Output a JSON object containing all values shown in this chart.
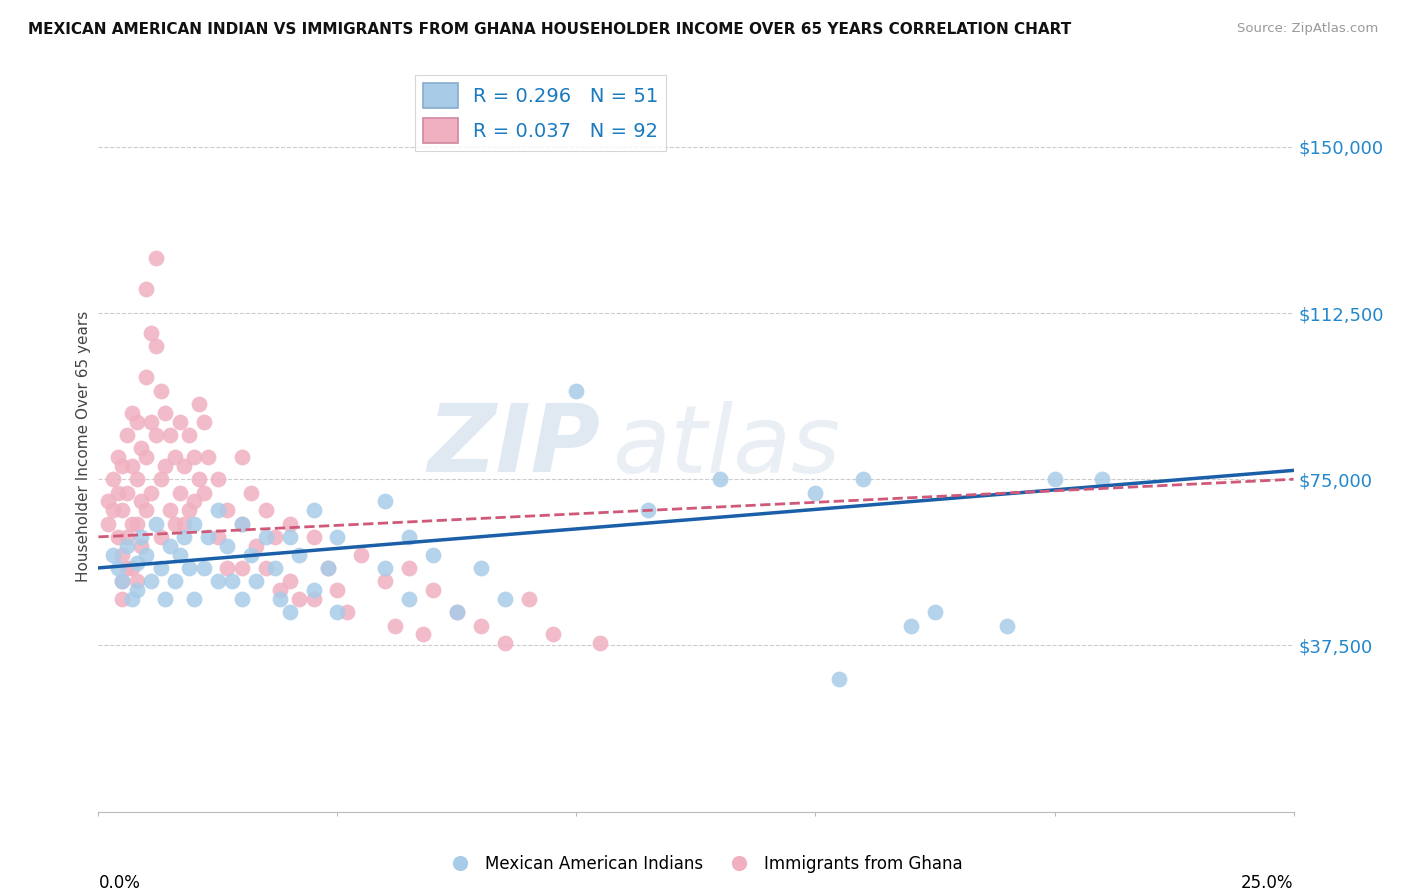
{
  "title": "MEXICAN AMERICAN INDIAN VS IMMIGRANTS FROM GHANA HOUSEHOLDER INCOME OVER 65 YEARS CORRELATION CHART",
  "source": "Source: ZipAtlas.com",
  "ylabel": "Householder Income Over 65 years",
  "xlim": [
    0.0,
    0.25
  ],
  "ylim": [
    0,
    165000
  ],
  "yticks": [
    0,
    37500,
    75000,
    112500,
    150000
  ],
  "ytick_labels": [
    "",
    "$37,500",
    "$75,000",
    "$112,500",
    "$150,000"
  ],
  "legend_label_blue": "Mexican American Indians",
  "legend_label_pink": "Immigrants from Ghana",
  "watermark_zip": "ZIP",
  "watermark_atlas": "atlas",
  "blue_color": "#a8cce8",
  "pink_color": "#f0b0c0",
  "blue_line_color": "#1a5fa8",
  "pink_line_color": "#d05878",
  "blue_scatter": [
    [
      0.003,
      58000
    ],
    [
      0.004,
      55000
    ],
    [
      0.005,
      52000
    ],
    [
      0.006,
      60000
    ],
    [
      0.007,
      48000
    ],
    [
      0.008,
      56000
    ],
    [
      0.008,
      50000
    ],
    [
      0.009,
      62000
    ],
    [
      0.01,
      58000
    ],
    [
      0.011,
      52000
    ],
    [
      0.012,
      65000
    ],
    [
      0.013,
      55000
    ],
    [
      0.014,
      48000
    ],
    [
      0.015,
      60000
    ],
    [
      0.016,
      52000
    ],
    [
      0.017,
      58000
    ],
    [
      0.018,
      62000
    ],
    [
      0.019,
      55000
    ],
    [
      0.02,
      48000
    ],
    [
      0.02,
      65000
    ],
    [
      0.022,
      55000
    ],
    [
      0.023,
      62000
    ],
    [
      0.025,
      68000
    ],
    [
      0.025,
      52000
    ],
    [
      0.027,
      60000
    ],
    [
      0.028,
      52000
    ],
    [
      0.03,
      65000
    ],
    [
      0.03,
      48000
    ],
    [
      0.032,
      58000
    ],
    [
      0.033,
      52000
    ],
    [
      0.035,
      62000
    ],
    [
      0.037,
      55000
    ],
    [
      0.038,
      48000
    ],
    [
      0.04,
      62000
    ],
    [
      0.04,
      45000
    ],
    [
      0.042,
      58000
    ],
    [
      0.045,
      68000
    ],
    [
      0.045,
      50000
    ],
    [
      0.048,
      55000
    ],
    [
      0.05,
      45000
    ],
    [
      0.05,
      62000
    ],
    [
      0.06,
      70000
    ],
    [
      0.06,
      55000
    ],
    [
      0.065,
      48000
    ],
    [
      0.065,
      62000
    ],
    [
      0.07,
      58000
    ],
    [
      0.075,
      45000
    ],
    [
      0.08,
      55000
    ],
    [
      0.085,
      48000
    ],
    [
      0.1,
      95000
    ],
    [
      0.115,
      68000
    ],
    [
      0.13,
      75000
    ],
    [
      0.15,
      72000
    ],
    [
      0.16,
      75000
    ],
    [
      0.175,
      45000
    ],
    [
      0.19,
      42000
    ],
    [
      0.2,
      75000
    ],
    [
      0.21,
      75000
    ],
    [
      0.155,
      30000
    ],
    [
      0.17,
      42000
    ]
  ],
  "pink_scatter": [
    [
      0.002,
      70000
    ],
    [
      0.002,
      65000
    ],
    [
      0.003,
      75000
    ],
    [
      0.003,
      68000
    ],
    [
      0.004,
      80000
    ],
    [
      0.004,
      72000
    ],
    [
      0.004,
      62000
    ],
    [
      0.005,
      78000
    ],
    [
      0.005,
      68000
    ],
    [
      0.005,
      58000
    ],
    [
      0.005,
      52000
    ],
    [
      0.005,
      48000
    ],
    [
      0.006,
      85000
    ],
    [
      0.006,
      72000
    ],
    [
      0.006,
      62000
    ],
    [
      0.006,
      55000
    ],
    [
      0.007,
      90000
    ],
    [
      0.007,
      78000
    ],
    [
      0.007,
      65000
    ],
    [
      0.007,
      55000
    ],
    [
      0.008,
      88000
    ],
    [
      0.008,
      75000
    ],
    [
      0.008,
      65000
    ],
    [
      0.008,
      52000
    ],
    [
      0.009,
      82000
    ],
    [
      0.009,
      70000
    ],
    [
      0.009,
      60000
    ],
    [
      0.01,
      118000
    ],
    [
      0.01,
      98000
    ],
    [
      0.01,
      80000
    ],
    [
      0.01,
      68000
    ],
    [
      0.011,
      108000
    ],
    [
      0.011,
      88000
    ],
    [
      0.011,
      72000
    ],
    [
      0.012,
      125000
    ],
    [
      0.012,
      105000
    ],
    [
      0.012,
      85000
    ],
    [
      0.013,
      95000
    ],
    [
      0.013,
      75000
    ],
    [
      0.013,
      62000
    ],
    [
      0.014,
      90000
    ],
    [
      0.014,
      78000
    ],
    [
      0.015,
      85000
    ],
    [
      0.015,
      68000
    ],
    [
      0.016,
      80000
    ],
    [
      0.016,
      65000
    ],
    [
      0.017,
      88000
    ],
    [
      0.017,
      72000
    ],
    [
      0.018,
      78000
    ],
    [
      0.018,
      65000
    ],
    [
      0.019,
      85000
    ],
    [
      0.019,
      68000
    ],
    [
      0.02,
      80000
    ],
    [
      0.02,
      70000
    ],
    [
      0.021,
      92000
    ],
    [
      0.021,
      75000
    ],
    [
      0.022,
      88000
    ],
    [
      0.022,
      72000
    ],
    [
      0.023,
      80000
    ],
    [
      0.025,
      75000
    ],
    [
      0.025,
      62000
    ],
    [
      0.027,
      68000
    ],
    [
      0.027,
      55000
    ],
    [
      0.03,
      80000
    ],
    [
      0.03,
      65000
    ],
    [
      0.03,
      55000
    ],
    [
      0.032,
      72000
    ],
    [
      0.033,
      60000
    ],
    [
      0.035,
      68000
    ],
    [
      0.035,
      55000
    ],
    [
      0.037,
      62000
    ],
    [
      0.038,
      50000
    ],
    [
      0.04,
      65000
    ],
    [
      0.04,
      52000
    ],
    [
      0.042,
      48000
    ],
    [
      0.045,
      62000
    ],
    [
      0.045,
      48000
    ],
    [
      0.048,
      55000
    ],
    [
      0.05,
      50000
    ],
    [
      0.052,
      45000
    ],
    [
      0.055,
      58000
    ],
    [
      0.06,
      52000
    ],
    [
      0.062,
      42000
    ],
    [
      0.065,
      55000
    ],
    [
      0.068,
      40000
    ],
    [
      0.07,
      50000
    ],
    [
      0.075,
      45000
    ],
    [
      0.08,
      42000
    ],
    [
      0.085,
      38000
    ],
    [
      0.09,
      48000
    ],
    [
      0.095,
      40000
    ],
    [
      0.105,
      38000
    ]
  ]
}
